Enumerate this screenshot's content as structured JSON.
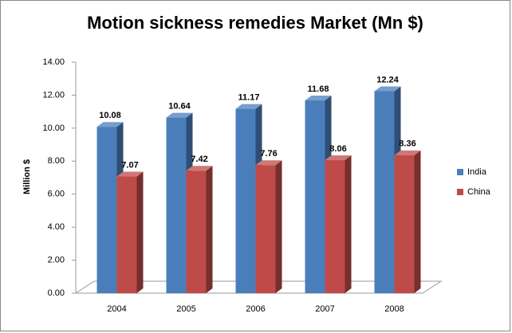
{
  "chart_data": {
    "type": "bar3d",
    "title": "Motion sickness remedies Market (Mn $)",
    "y_label": "Million $",
    "categories": [
      "2004",
      "2005",
      "2006",
      "2007",
      "2008"
    ],
    "series": [
      {
        "name": "India",
        "color": "#4a7ebb",
        "values": [
          10.08,
          10.64,
          11.17,
          11.68,
          12.24
        ]
      },
      {
        "name": "China",
        "color": "#be4b48",
        "values": [
          7.07,
          7.42,
          7.76,
          8.06,
          8.36
        ]
      }
    ],
    "ylim": [
      0,
      14
    ],
    "yticks": [
      {
        "value": 0,
        "label": "0.00"
      },
      {
        "value": 2,
        "label": "2.00"
      },
      {
        "value": 4,
        "label": "4.00"
      },
      {
        "value": 6,
        "label": "6.00"
      },
      {
        "value": 8,
        "label": "8.00"
      },
      {
        "value": 10,
        "label": "10.00"
      },
      {
        "value": 12,
        "label": "12.00"
      },
      {
        "value": 14,
        "label": "14.00"
      }
    ],
    "grid": false,
    "legend": "right"
  }
}
